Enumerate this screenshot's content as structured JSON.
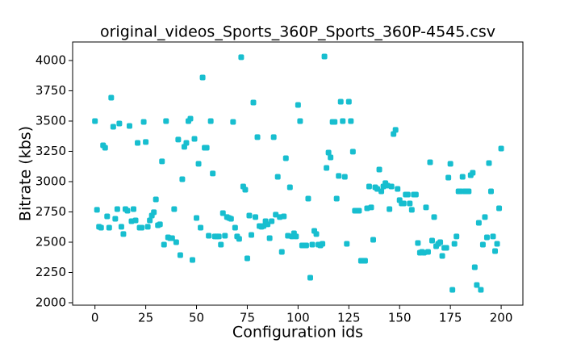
{
  "chart_data": {
    "type": "scatter",
    "title": "original_videos_Sports_360P_Sports_360P-4545.csv",
    "xlabel": "Configuration ids",
    "ylabel": "Bitrate (kbs)",
    "color": "#17becf",
    "x": [
      0,
      1,
      2,
      3,
      4,
      5,
      6,
      7,
      8,
      9,
      10,
      11,
      12,
      13,
      14,
      15,
      16,
      17,
      18,
      19,
      20,
      21,
      22,
      23,
      24,
      25,
      26,
      27,
      28,
      29,
      30,
      31,
      32,
      33,
      34,
      35,
      36,
      37,
      38,
      39,
      40,
      41,
      42,
      43,
      44,
      45,
      46,
      47,
      48,
      49,
      50,
      51,
      52,
      53,
      54,
      55,
      56,
      57,
      58,
      59,
      60,
      61,
      62,
      63,
      64,
      65,
      66,
      67,
      68,
      69,
      70,
      71,
      72,
      73,
      74,
      75,
      76,
      77,
      78,
      79,
      80,
      81,
      82,
      83,
      84,
      85,
      86,
      87,
      88,
      89,
      90,
      91,
      92,
      93,
      94,
      95,
      96,
      97,
      98,
      99,
      100,
      101,
      102,
      103,
      104,
      105,
      106,
      107,
      108,
      109,
      110,
      111,
      112,
      113,
      114,
      115,
      116,
      117,
      118,
      119,
      120,
      121,
      122,
      123,
      124,
      125,
      126,
      127,
      128,
      129,
      130,
      131,
      132,
      133,
      134,
      135,
      136,
      137,
      138,
      139,
      140,
      141,
      142,
      143,
      144,
      145,
      146,
      147,
      148,
      149,
      150,
      151,
      152,
      153,
      154,
      155,
      156,
      157,
      158,
      159,
      160,
      161,
      162,
      163,
      164,
      165,
      166,
      167,
      168,
      169,
      170,
      171,
      172,
      173,
      174,
      175,
      176,
      177,
      178,
      179,
      180,
      181,
      182,
      183,
      184,
      185,
      186,
      187,
      188,
      189,
      190,
      191,
      192,
      193,
      194,
      195,
      196,
      197,
      198,
      199,
      200
    ],
    "values": [
      3500,
      2767,
      2627,
      2620,
      3300,
      3280,
      2713,
      2620,
      3693,
      3453,
      2693,
      2773,
      3480,
      2627,
      2567,
      2773,
      2760,
      3460,
      2673,
      2773,
      2680,
      3320,
      2620,
      2620,
      3493,
      3327,
      2627,
      2680,
      2720,
      2747,
      2853,
      2640,
      2647,
      3167,
      2480,
      3500,
      2540,
      2533,
      2533,
      2773,
      2500,
      3347,
      2393,
      3020,
      3287,
      3320,
      3500,
      3520,
      2353,
      3353,
      2700,
      3147,
      2620,
      3860,
      3280,
      3280,
      2553,
      3500,
      3067,
      2547,
      2547,
      2547,
      2480,
      2740,
      2553,
      2707,
      2700,
      2693,
      3493,
      2620,
      2547,
      2527,
      4027,
      2960,
      2933,
      2367,
      2720,
      2560,
      3653,
      2707,
      3367,
      2633,
      2627,
      2633,
      2673,
      2647,
      2533,
      2673,
      3367,
      2727,
      3040,
      2707,
      2420,
      2713,
      3193,
      2553,
      2953,
      2547,
      2573,
      2547,
      3633,
      3500,
      2473,
      2473,
      2473,
      2860,
      2207,
      2480,
      2593,
      2567,
      2480,
      2473,
      2487,
      4033,
      3113,
      3240,
      3200,
      3493,
      3493,
      2860,
      3047,
      3660,
      3500,
      3040,
      2487,
      3660,
      3500,
      3247,
      2760,
      2760,
      2760,
      2347,
      2347,
      2347,
      2780,
      2960,
      2787,
      2520,
      2953,
      2940,
      3100,
      2920,
      2960,
      2987,
      2967,
      2773,
      2960,
      3393,
      3427,
      2940,
      2847,
      2820,
      2820,
      2893,
      2893,
      2820,
      2767,
      2893,
      2893,
      2493,
      2413,
      2420,
      2413,
      2787,
      2420,
      3160,
      2513,
      2707,
      2467,
      2487,
      2500,
      2387,
      2453,
      2453,
      3033,
      3147,
      2107,
      2487,
      2547,
      2920,
      2920,
      3040,
      2920,
      2920,
      2920,
      3053,
      3073,
      2293,
      2147,
      2660,
      2107,
      2480,
      2707,
      2540,
      3153,
      2920,
      2547,
      2427,
      2487,
      2780,
      3273
    ],
    "xlim": [
      -11,
      210.7
    ],
    "ylim": [
      1980,
      4153
    ],
    "xticks": [
      0,
      25,
      50,
      75,
      100,
      125,
      150,
      175,
      200
    ],
    "yticks": [
      2000,
      2250,
      2500,
      2750,
      3000,
      3250,
      3500,
      3750,
      4000
    ],
    "grid": false
  }
}
